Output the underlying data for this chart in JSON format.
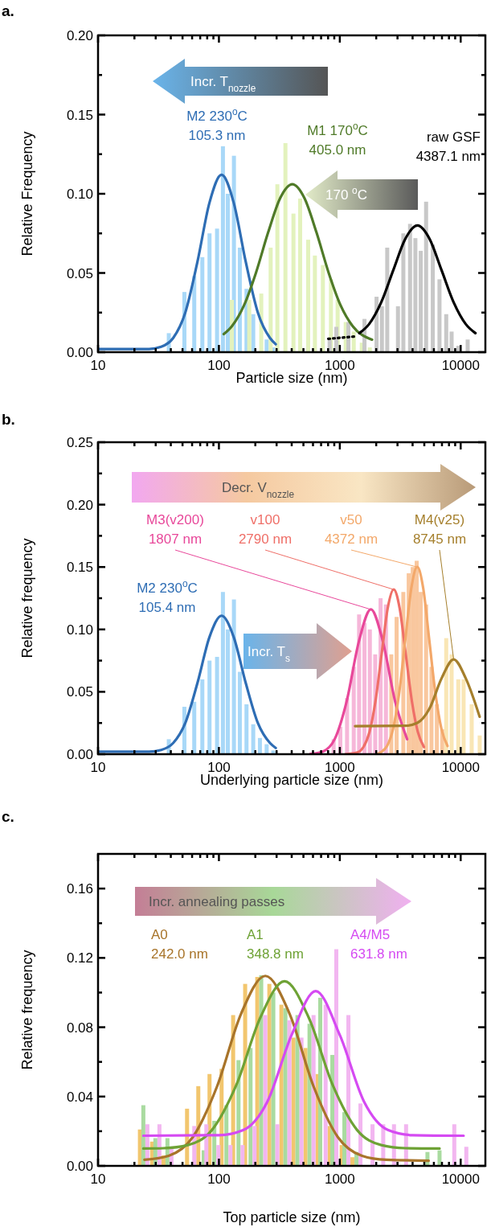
{
  "chart_data": [
    {
      "type": "bar",
      "title": "a.",
      "xlabel": "Particle size (nm)",
      "ylabel": "Relative Frequency",
      "log": "x",
      "xlim": [
        10,
        16000
      ],
      "xticks": [
        10,
        {
          "value": 20,
          "label": null
        },
        {
          "value": 30,
          "label": null
        },
        {
          "value": 40,
          "label": null
        },
        {
          "value": 50,
          "label": null
        },
        {
          "value": 60,
          "label": null
        },
        {
          "value": 70,
          "label": null
        },
        {
          "value": 80,
          "label": null
        },
        {
          "value": 90,
          "label": null
        },
        100,
        {
          "value": 200,
          "label": null
        },
        {
          "value": 300,
          "label": null
        },
        {
          "value": 400,
          "label": null
        },
        {
          "value": 500,
          "label": null
        },
        {
          "value": 600,
          "label": null
        },
        {
          "value": 700,
          "label": null
        },
        {
          "value": 800,
          "label": null
        },
        {
          "value": 900,
          "label": null
        },
        1000,
        {
          "value": 2000,
          "label": null
        },
        {
          "value": 3000,
          "label": null
        },
        {
          "value": 4000,
          "label": null
        },
        {
          "value": 5000,
          "label": null
        },
        {
          "value": 6000,
          "label": null
        },
        {
          "value": 7000,
          "label": null
        },
        {
          "value": 8000,
          "label": null
        },
        {
          "value": 9000,
          "label": null
        },
        10000
      ],
      "ylim": [
        0,
        0.2
      ],
      "yticks": [
        {
          "value": 0,
          "label": "0.00"
        },
        {
          "value": 0.025,
          "label": null
        },
        {
          "value": 0.05,
          "label": "0.05"
        },
        {
          "value": 0.075,
          "label": null
        },
        {
          "value": 0.1,
          "label": "0.10"
        },
        {
          "value": 0.125,
          "label": null
        },
        {
          "value": 0.15,
          "label": "0.15"
        },
        {
          "value": 0.175,
          "label": null
        },
        {
          "value": 0.2,
          "label": "0.20"
        }
      ],
      "annotations": [
        "Incr. T$_{nozzle}$",
        "170 $^{o}$C"
      ],
      "series": [
        {
          "color": "#a8d8f8",
          "x": [
            38.5,
            51.8,
            62.5,
            72.9,
            83.6,
            96.5,
            107.9,
            118.4,
            133.1,
            148.9,
            169.1,
            192.2,
            248.3,
            281.8
          ],
          "values": [
            0.012,
            0.038,
            0.048,
            0.06,
            0.075,
            0.078,
            0.13,
            0.1,
            0.124,
            0.066,
            0.04,
            0.024,
            0.008,
            0.003
          ]
        },
        {
          "color": "#e3f2bd",
          "x": [
            127.8,
            178.1,
            224,
            267.9,
            304.3,
            354.8,
            413.4,
            469.9,
            547.3,
            622.2,
            724.4,
            844.7,
            959.4,
            1119,
            1304,
            1520,
            1771
          ],
          "values": [
            0.033,
            0.033,
            0.037,
            0.066,
            0.106,
            0.132,
            0.0875,
            0.097,
            0.071,
            0.061,
            0.055,
            0.046,
            0.033,
            0.019,
            0.013,
            0.006,
            0.003
          ]
        },
        {
          "color": "#c8c8c8",
          "x": [
            823.7,
            935.5,
            1178,
            1600,
            2013,
            2230,
            2467,
            3027,
            3354,
            3811,
            4218,
            4672,
            5173,
            5877,
            6676,
            7590,
            8410,
            9550,
            11420
          ],
          "values": [
            0.008,
            0.016,
            0.019,
            0.021,
            0.035,
            0.029,
            0.066,
            0.029,
            0.075,
            0.081,
            0.072,
            0.064,
            0.095,
            0.068,
            0.046,
            0.024,
            0.013,
            0.004,
            0.008
          ]
        },
        {
          "type": "line",
          "name": "M2 230$^{o}$C\n105.3 nm",
          "color": "#2e6db4",
          "x": [
            10,
            20,
            26.4,
            33.3,
            41.9,
            52.7,
            66.4,
            83.6,
            105.2,
            132.4,
            166.7,
            209.9,
            264.2,
            295
          ],
          "values": [
            0.002,
            0.002,
            0.002,
            0.0034,
            0.009,
            0.025,
            0.057,
            0.0945,
            0.112,
            0.0945,
            0.057,
            0.025,
            0.009,
            0.005
          ]
        },
        {
          "type": "line",
          "name": "M1 170$^{o}$C\n405.0 nm",
          "color": "#4f7a28",
          "x": [
            109.6,
            128,
            161.1,
            202.8,
            255.3,
            321.4,
            404.6,
            509.3,
            641.2,
            807.2,
            1016,
            1279,
            1849
          ],
          "values": [
            0.0114,
            0.0164,
            0.0295,
            0.0503,
            0.0756,
            0.0973,
            0.106,
            0.0973,
            0.0756,
            0.0503,
            0.0295,
            0.0164,
            0.0079
          ]
        },
        {
          "type": "line",
          "color": "#000000",
          "line_style": "dotted",
          "x": [
            803,
            1370
          ],
          "values": [
            0.0084,
            0.01
          ]
        },
        {
          "type": "line",
          "name": "raw GSF\n4387.1 nm",
          "color": "#000000",
          "x": [
            1452,
            1746,
            2198,
            2767,
            3483,
            4385,
            5521,
            6950,
            8750,
            11015,
            13243
          ],
          "values": [
            0.012,
            0.0177,
            0.0314,
            0.0517,
            0.0716,
            0.08,
            0.0716,
            0.0517,
            0.0314,
            0.0177,
            0.012
          ]
        }
      ]
    },
    {
      "type": "bar",
      "title": "b.",
      "xlabel": "Underlying particle size (nm)",
      "ylabel": "Relative frequency",
      "log": "x",
      "xlim": [
        10,
        16000
      ],
      "xticks": [
        10,
        {
          "value": 20,
          "label": null
        },
        {
          "value": 30,
          "label": null
        },
        {
          "value": 40,
          "label": null
        },
        {
          "value": 50,
          "label": null
        },
        {
          "value": 60,
          "label": null
        },
        {
          "value": 70,
          "label": null
        },
        {
          "value": 80,
          "label": null
        },
        {
          "value": 90,
          "label": null
        },
        100,
        {
          "value": 200,
          "label": null
        },
        {
          "value": 300,
          "label": null
        },
        {
          "value": 400,
          "label": null
        },
        {
          "value": 500,
          "label": null
        },
        {
          "value": 600,
          "label": null
        },
        {
          "value": 700,
          "label": null
        },
        {
          "value": 800,
          "label": null
        },
        {
          "value": 900,
          "label": null
        },
        1000,
        {
          "value": 2000,
          "label": null
        },
        {
          "value": 3000,
          "label": null
        },
        {
          "value": 4000,
          "label": null
        },
        {
          "value": 5000,
          "label": null
        },
        {
          "value": 6000,
          "label": null
        },
        {
          "value": 7000,
          "label": null
        },
        {
          "value": 8000,
          "label": null
        },
        {
          "value": 9000,
          "label": null
        },
        10000
      ],
      "ylim": [
        0,
        0.25
      ],
      "yticks": [
        {
          "value": 0,
          "label": "0.00"
        },
        {
          "value": 0.025,
          "label": null
        },
        {
          "value": 0.05,
          "label": "0.05"
        },
        {
          "value": 0.075,
          "label": null
        },
        {
          "value": 0.1,
          "label": "0.10"
        },
        {
          "value": 0.125,
          "label": null
        },
        {
          "value": 0.15,
          "label": "0.15"
        },
        {
          "value": 0.175,
          "label": null
        },
        {
          "value": 0.2,
          "label": "0.20"
        },
        {
          "value": 0.225,
          "label": null
        },
        {
          "value": 0.25,
          "label": "0.25"
        }
      ],
      "annotations": [
        "Decr. V$_{nozzle}$",
        "Incr. T$_{s}$"
      ],
      "series": [
        {
          "color": "#a8d8f8",
          "x": [
            38.5,
            51.8,
            62.5,
            72.9,
            83.6,
            96.5,
            107.9,
            118.4,
            133.1,
            148.9,
            169.1,
            192.2,
            218.3,
            248.3,
            281.8
          ],
          "values": [
            0.012,
            0.038,
            0.042,
            0.06,
            0.075,
            0.078,
            0.13,
            0.1,
            0.124,
            0.066,
            0.04,
            0.024,
            0.013,
            0.008,
            0.003
          ]
        },
        {
          "color": "#f6b7d9",
          "x": [
            889,
            1010,
            1148,
            1304,
            1444,
            1600,
            1772,
            1963,
            2174,
            2407
          ],
          "values": [
            0.012,
            0.022,
            0.045,
            0.07,
            0.112,
            0.105,
            0.1,
            0.08,
            0.125,
            0.12
          ]
        },
        {
          "color": "#f9c79e",
          "x": [
            2666,
            2951,
            3354,
            3715,
            4011,
            4325,
            4672,
            5173,
            5731,
            6350,
            7031
          ],
          "values": [
            0.08,
            0.11,
            0.13,
            0.145,
            0.15,
            0.155,
            0.13,
            0.12,
            0.07,
            0.04,
            0.02
          ]
        },
        {
          "color": "#f9e6b5",
          "x": [
            7590,
            8410,
            9550,
            10570,
            12330,
            14360
          ],
          "values": [
            0.093,
            0.08,
            0.06,
            0.06,
            0.04,
            0.015
          ]
        },
        {
          "type": "line",
          "name": "M2 230$^{o}$C\n105.4 nm",
          "color": "#2e6db4",
          "x": [
            10,
            20,
            26.4,
            33.3,
            41.9,
            52.7,
            66.4,
            83.6,
            105.2,
            132.4,
            166.7,
            209.9,
            264.2,
            295
          ],
          "values": [
            0.002,
            0.002,
            0.002,
            0.0034,
            0.009,
            0.025,
            0.057,
            0.094,
            0.111,
            0.094,
            0.057,
            0.025,
            0.009,
            0.005
          ]
        },
        {
          "type": "line",
          "name": "M3(v200)\n1807 nm",
          "color": "#e8489a",
          "x": [
            571,
            719,
            906,
            1140,
            1435,
            1807,
            2275,
            2864,
            3606
          ],
          "values": [
            0.0002,
            0.002,
            0.012,
            0.0425,
            0.09,
            0.116,
            0.09,
            0.0425,
            0.012
          ]
        },
        {
          "type": "line",
          "name": "v100\n2790 nm",
          "color": "#ef6f68",
          "x": [
            1111,
            1398,
            1569,
            1760,
            1975,
            2216,
            2486,
            2790,
            3131,
            3513,
            3941,
            4422,
            4962
          ],
          "values": [
            0,
            0.0015,
            0.0058,
            0.0178,
            0.0429,
            0.08,
            0.1166,
            0.132,
            0.1166,
            0.08,
            0.0429,
            0.0178,
            0.0058
          ]
        },
        {
          "type": "line",
          "name": "v50\n4372 nm",
          "color": "#f3a86a",
          "x": [
            2065,
            2191,
            2459,
            2759,
            3096,
            3474,
            3896,
            4372,
            4905,
            5504,
            6176,
            6929,
            7775
          ],
          "values": [
            0.0003,
            0.0017,
            0.0066,
            0.0203,
            0.0488,
            0.091,
            0.1325,
            0.15,
            0.1325,
            0.091,
            0.0488,
            0.0203,
            0.0066
          ]
        },
        {
          "type": "line",
          "name": "M4(v25)\n8745 nm",
          "color": "#a57f2c",
          "x": [
            1337,
            3482,
            4383,
            5518,
            6947,
            8745,
            11010,
            14350
          ],
          "values": [
            0.0225,
            0.0228,
            0.0251,
            0.0365,
            0.0608,
            0.076,
            0.0608,
            0.03
          ]
        }
      ]
    },
    {
      "type": "bar",
      "title": "c.",
      "xlabel": "Top particle size (nm)",
      "ylabel": "Relative frequency",
      "log": "x",
      "xlim": [
        10,
        16000
      ],
      "xticks": [
        10,
        {
          "value": 20,
          "label": null
        },
        {
          "value": 30,
          "label": null
        },
        {
          "value": 40,
          "label": null
        },
        {
          "value": 50,
          "label": null
        },
        {
          "value": 60,
          "label": null
        },
        {
          "value": 70,
          "label": null
        },
        {
          "value": 80,
          "label": null
        },
        {
          "value": 90,
          "label": null
        },
        100,
        {
          "value": 200,
          "label": null
        },
        {
          "value": 300,
          "label": null
        },
        {
          "value": 400,
          "label": null
        },
        {
          "value": 500,
          "label": null
        },
        {
          "value": 600,
          "label": null
        },
        {
          "value": 700,
          "label": null
        },
        {
          "value": 800,
          "label": null
        },
        {
          "value": 900,
          "label": null
        },
        1000,
        {
          "value": 2000,
          "label": null
        },
        {
          "value": 3000,
          "label": null
        },
        {
          "value": 4000,
          "label": null
        },
        {
          "value": 5000,
          "label": null
        },
        {
          "value": 6000,
          "label": null
        },
        {
          "value": 7000,
          "label": null
        },
        {
          "value": 8000,
          "label": null
        },
        {
          "value": 9000,
          "label": null
        },
        10000
      ],
      "ylim": [
        0,
        0.18
      ],
      "yticks": [
        {
          "value": 0,
          "label": "0.00"
        },
        {
          "value": 0.02,
          "label": null
        },
        0.04,
        {
          "value": 0.06,
          "label": null
        },
        0.08,
        {
          "value": 0.1,
          "label": null
        },
        0.12,
        {
          "value": 0.14,
          "label": null
        },
        0.16
      ],
      "annotations": [
        "Incr. annealing passes"
      ],
      "series": [
        {
          "color": "#f2c66e",
          "x": [
            22.2,
            28,
            34.8,
            54.5,
            67.5,
            83.6,
            105.2,
            131.1,
            164.8,
            207.5,
            261.2,
            328.6,
            413.4,
            520,
            654.6,
            823.7,
            1036,
            1271
          ],
          "values": [
            0.021,
            0.014,
            0.006,
            0.033,
            0.046,
            0.053,
            0.056,
            0.087,
            0.105,
            0.109,
            0.105,
            0.093,
            0.074,
            0.068,
            0.053,
            0.023,
            0.012,
            0.005
          ]
        },
        {
          "color": "#a9dba0",
          "x": [
            23.7,
            29.8,
            37.5,
            74.8,
            91.6,
            115.3,
            145.2,
            182.6,
            223.9,
            281.8,
            354.8,
            446.4,
            561.6,
            688.7,
            867.6,
            1091,
            1373,
            5309,
            6683
          ],
          "values": [
            0.035,
            0.016,
            0.016,
            0.009,
            0.026,
            0.035,
            0.061,
            0.068,
            0.11,
            0.1,
            0.091,
            0.087,
            0.082,
            0.097,
            0.064,
            0.031,
            0.008,
            0.008,
            0.009
          ]
        },
        {
          "color": "#f2b6f0",
          "x": [
            25.6,
            32.2,
            40.5,
            62.5,
            78.7,
            99,
            124.5,
            156.7,
            197.2,
            242,
            304.3,
            382.9,
            481.9,
            606.5,
            763,
            935.5,
            1178,
            1482,
            1865,
            2286,
            2806,
            3533,
            8851,
            11130
          ],
          "values": [
            0.024,
            0.024,
            0.011,
            0.023,
            0.024,
            0.012,
            0.012,
            0.012,
            0.023,
            0.087,
            0.024,
            0.084,
            0.074,
            0.087,
            0.093,
            0.125,
            0.087,
            0.036,
            0.024,
            0.024,
            0.024,
            0.024,
            0.024,
            0.011
          ]
        },
        {
          "type": "line",
          "name": "A0\n242.0 nm",
          "color": "#a8742a",
          "x": [
            24.2,
            38.4,
            60.8,
            96.3,
            152.7,
            242,
            383.5,
            607.8,
            963.4,
            1527,
            2420,
            5433
          ],
          "values": [
            0.0035,
            0.0058,
            0.0166,
            0.0457,
            0.0879,
            0.1096,
            0.0879,
            0.0457,
            0.0166,
            0.0058,
            0.0035,
            0.003
          ]
        },
        {
          "type": "line",
          "name": "A1\n348.8 nm",
          "color": "#6ea235",
          "x": [
            23.7,
            34.9,
            55.3,
            87.6,
            138.8,
            220.1,
            348.8,
            552.8,
            876.1,
            1389,
            2201,
            3488,
            6683
          ],
          "values": [
            0.01,
            0.0102,
            0.012,
            0.0207,
            0.0464,
            0.0856,
            0.1065,
            0.0856,
            0.0464,
            0.0207,
            0.012,
            0.0102,
            0.01
          ]
        },
        {
          "type": "line",
          "name": "A4/M5\n631.8 nm",
          "color": "#d54af2",
          "x": [
            23.7,
            100.1,
            158.7,
            251.5,
            398.6,
            631.8,
            1001,
            1587,
            2516,
            3988,
            10570
          ],
          "values": [
            0.0174,
            0.0177,
            0.0206,
            0.037,
            0.0754,
            0.1008,
            0.0754,
            0.037,
            0.0206,
            0.0177,
            0.0174
          ]
        }
      ]
    }
  ]
}
